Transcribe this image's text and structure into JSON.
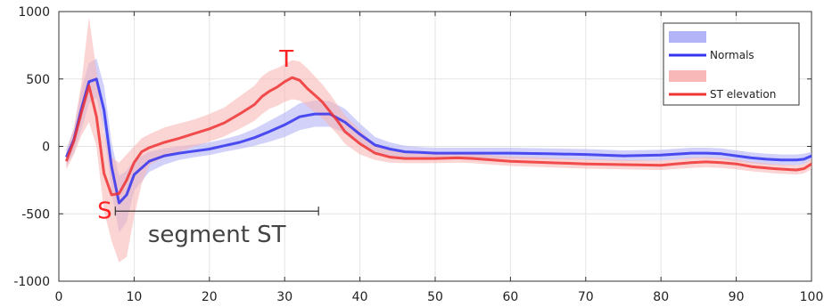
{
  "chart_data": {
    "type": "line",
    "xlim": [
      0,
      100
    ],
    "ylim": [
      -1000,
      1000
    ],
    "x_ticks": [
      0,
      10,
      20,
      30,
      40,
      50,
      60,
      70,
      80,
      90,
      100
    ],
    "y_ticks": [
      1000,
      500,
      0,
      -500,
      -1000
    ],
    "x_tick_labels": [
      "0",
      "10",
      "20",
      "30",
      "40",
      "50",
      "60",
      "70",
      "80",
      "90",
      "100"
    ],
    "y_tick_labels": [
      "1000",
      "500",
      "0",
      "-500",
      "-1000"
    ],
    "grid": true,
    "legend_position": "top-right",
    "colors": {
      "normals_line": "#3333ee",
      "normals_band": "#b3b3f7",
      "st_line": "#ee3333",
      "st_band": "#f8b8b8",
      "annotation_text": "#ff2222",
      "segment_text": "#444444",
      "grid": "#e3e3e3",
      "axis": "#333333"
    },
    "series": [
      {
        "name": "Normals",
        "x": [
          1,
          2,
          3,
          4,
          5,
          6,
          7,
          8,
          9,
          10,
          12,
          14,
          16,
          18,
          20,
          22,
          24,
          26,
          28,
          30,
          32,
          34,
          36,
          38,
          40,
          42,
          44,
          46,
          48,
          50,
          55,
          60,
          65,
          70,
          75,
          80,
          84,
          86,
          88,
          90,
          92,
          94,
          96,
          98,
          99,
          100
        ],
        "y": [
          -80,
          50,
          280,
          480,
          500,
          270,
          -150,
          -420,
          -360,
          -210,
          -110,
          -70,
          -50,
          -35,
          -20,
          5,
          30,
          65,
          110,
          160,
          220,
          240,
          240,
          180,
          90,
          10,
          -20,
          -40,
          -45,
          -50,
          -50,
          -50,
          -55,
          -60,
          -70,
          -65,
          -50,
          -50,
          -55,
          -70,
          -85,
          -95,
          -100,
          -100,
          -95,
          -70
        ],
        "band_lower": [
          -150,
          -40,
          120,
          320,
          360,
          120,
          -330,
          -640,
          -560,
          -330,
          -190,
          -135,
          -100,
          -80,
          -65,
          -40,
          -20,
          5,
          35,
          70,
          120,
          145,
          145,
          100,
          30,
          -45,
          -75,
          -85,
          -85,
          -90,
          -90,
          -90,
          -95,
          -100,
          -110,
          -105,
          -90,
          -90,
          -95,
          -110,
          -125,
          -135,
          -140,
          -140,
          -130,
          -100
        ],
        "band_upper": [
          -20,
          130,
          420,
          620,
          650,
          450,
          30,
          -220,
          -180,
          -100,
          -40,
          -15,
          0,
          15,
          30,
          55,
          85,
          130,
          190,
          250,
          320,
          340,
          335,
          280,
          170,
          70,
          30,
          5,
          -5,
          -10,
          -10,
          -10,
          -15,
          -20,
          -30,
          -25,
          -10,
          -10,
          -15,
          -30,
          -45,
          -55,
          -60,
          -60,
          -55,
          -40
        ]
      },
      {
        "name": "ST elevation",
        "x": [
          1,
          2,
          3,
          4,
          5,
          6,
          7,
          8,
          9,
          10,
          11,
          12,
          14,
          16,
          18,
          20,
          22,
          24,
          26,
          27,
          28,
          29,
          30,
          31,
          32,
          33,
          34,
          35,
          36,
          37,
          38,
          40,
          42,
          44,
          46,
          48,
          50,
          53,
          55,
          60,
          65,
          70,
          75,
          80,
          84,
          86,
          88,
          90,
          92,
          95,
          98,
          99,
          100
        ],
        "y": [
          -110,
          40,
          250,
          450,
          220,
          -200,
          -360,
          -350,
          -250,
          -120,
          -40,
          -10,
          30,
          60,
          95,
          130,
          175,
          240,
          310,
          370,
          410,
          440,
          480,
          510,
          490,
          430,
          380,
          330,
          260,
          190,
          110,
          20,
          -50,
          -80,
          -90,
          -90,
          -90,
          -85,
          -90,
          -110,
          -120,
          -130,
          -135,
          -140,
          -120,
          -115,
          -120,
          -130,
          -150,
          -165,
          -175,
          -165,
          -130
        ],
        "band_lower": [
          -170,
          -60,
          80,
          180,
          0,
          -480,
          -700,
          -860,
          -820,
          -520,
          -280,
          -140,
          -80,
          -40,
          0,
          35,
          75,
          130,
          190,
          240,
          280,
          300,
          330,
          350,
          340,
          300,
          255,
          210,
          150,
          90,
          20,
          -60,
          -100,
          -120,
          -125,
          -125,
          -125,
          -120,
          -125,
          -145,
          -155,
          -165,
          -170,
          -175,
          -160,
          -155,
          -160,
          -170,
          -185,
          -200,
          -210,
          -200,
          -170
        ],
        "band_upper": [
          -40,
          140,
          470,
          960,
          560,
          100,
          -80,
          -120,
          -60,
          0,
          60,
          90,
          140,
          170,
          200,
          240,
          290,
          370,
          450,
          520,
          560,
          580,
          610,
          640,
          630,
          580,
          520,
          460,
          390,
          310,
          230,
          120,
          10,
          -30,
          -50,
          -55,
          -55,
          -50,
          -55,
          -75,
          -85,
          -95,
          -100,
          -105,
          -85,
          -80,
          -85,
          -95,
          -115,
          -130,
          -140,
          -130,
          -90
        ]
      }
    ],
    "annotations": {
      "s_label": "S",
      "t_label": "T",
      "segment_label": "segment ST",
      "s_point": [
        6.8,
        -350
      ],
      "t_point": [
        30,
        510
      ],
      "segment_start_x": 7.5,
      "segment_end_x": 34.5,
      "segment_y": -480
    }
  }
}
